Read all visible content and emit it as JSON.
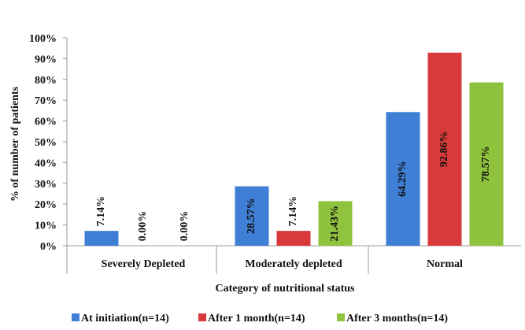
{
  "chart_data": {
    "type": "bar",
    "title": "",
    "xlabel": "Category of nutritional status",
    "ylabel": "% of number of patients",
    "categories": [
      "Severely Depleted",
      "Moderately depleted",
      "Normal"
    ],
    "series": [
      {
        "name": "At initiation(n=14)",
        "color": "#3f7fd6",
        "values": [
          7.14,
          28.57,
          64.29
        ],
        "labels": [
          "7.14%",
          "28.57%",
          "64.29%"
        ]
      },
      {
        "name": "After 1 month(n=14)",
        "color": "#d83a3a",
        "values": [
          0.0,
          7.14,
          92.86
        ],
        "labels": [
          "0.00%",
          "7.14%",
          "92.86%"
        ]
      },
      {
        "name": "After 3 months(n=14)",
        "color": "#8fc23d",
        "values": [
          0.0,
          21.43,
          78.57
        ],
        "labels": [
          "0.00%",
          "21.43%",
          "78.57%"
        ]
      }
    ],
    "yticks": [
      "0%",
      "10%",
      "20%",
      "30%",
      "40%",
      "50%",
      "60%",
      "70%",
      "80%",
      "90%",
      "100%"
    ],
    "ylim": [
      0,
      100
    ],
    "grid": false,
    "legend": "bottom"
  }
}
